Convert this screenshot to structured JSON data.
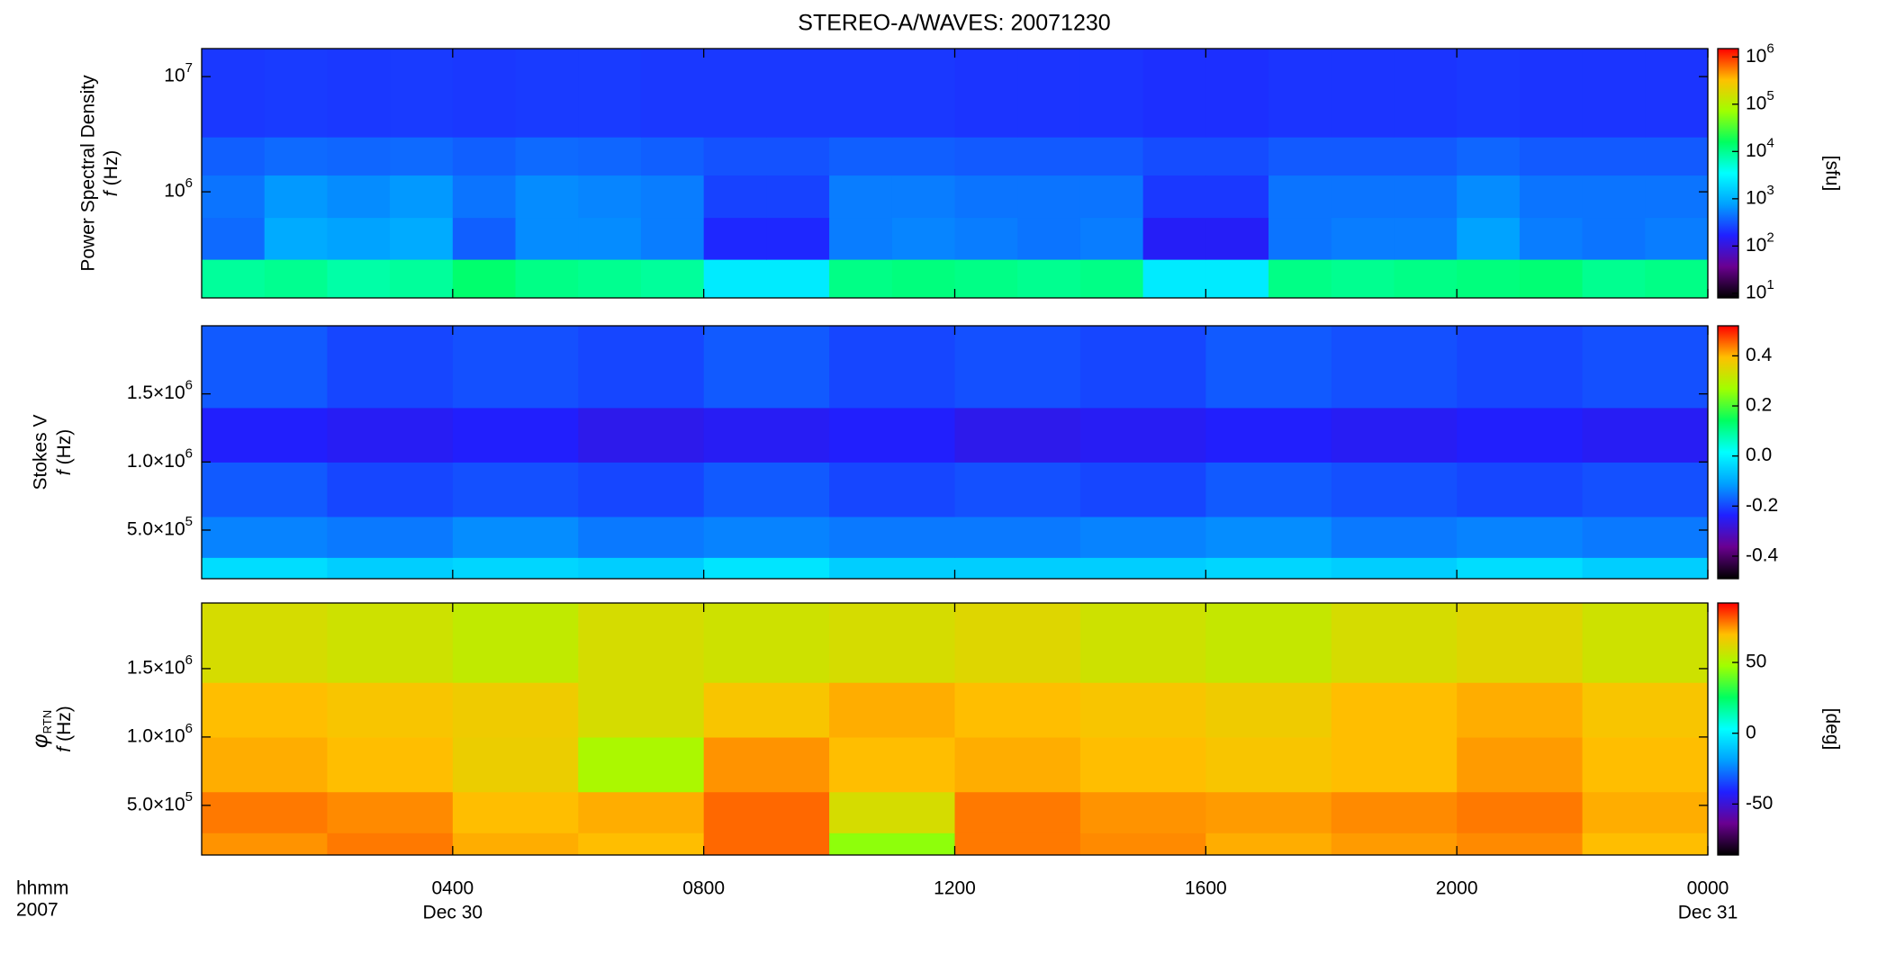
{
  "chart_data": [
    {
      "type": "heatmap",
      "title": "STEREO-A/WAVES: 20071230",
      "ylabel": "Power Spectral Density",
      "yvar": "f",
      "yunit": "(Hz)",
      "ylog": true,
      "ylim": [
        120000,
        17500000
      ],
      "yticks": [
        {
          "value": 1000000,
          "label": "10",
          "exponent": "6"
        },
        {
          "value": 10000000,
          "label": "10",
          "exponent": "7"
        }
      ],
      "zlog": true,
      "zlim": [
        8,
        1500000
      ],
      "zticks": [
        {
          "value": 10,
          "label": "10",
          "exponent": "1"
        },
        {
          "value": 100,
          "label": "10",
          "exponent": "2"
        },
        {
          "value": 1000,
          "label": "10",
          "exponent": "3"
        },
        {
          "value": 10000,
          "label": "10",
          "exponent": "4"
        },
        {
          "value": 100000,
          "label": "10",
          "exponent": "5"
        },
        {
          "value": 1000000,
          "label": "10",
          "exponent": "6"
        }
      ],
      "zlabel": "[sfu]",
      "colormap": [
        "#000000",
        "#6a0090",
        "#2020ff",
        "#00a0ff",
        "#00ffff",
        "#00ff60",
        "#a0ff00",
        "#ffc000",
        "#ff0000"
      ],
      "xlim": [
        0,
        24
      ],
      "xbins": [
        0,
        1,
        2,
        3,
        4,
        5,
        6,
        7,
        8,
        9,
        10,
        11,
        12,
        13,
        14,
        15,
        16,
        17,
        18,
        19,
        20,
        21,
        22,
        23,
        24
      ],
      "ybins": [
        120000,
        260000,
        600000,
        1400000,
        3000000,
        17500000
      ],
      "z": [
        [
          9000,
          10000,
          8000,
          9000,
          14000,
          11000,
          10000,
          9000,
          2500,
          2500,
          11000,
          12000,
          11000,
          10000,
          11000,
          2500,
          2500,
          11000,
          10000,
          11000,
          12000,
          13000,
          10000,
          11000
        ],
        [
          400,
          900,
          800,
          900,
          350,
          600,
          600,
          500,
          180,
          180,
          500,
          550,
          500,
          450,
          500,
          150,
          150,
          450,
          500,
          500,
          800,
          500,
          450,
          500
        ],
        [
          450,
          700,
          600,
          700,
          450,
          600,
          550,
          500,
          250,
          250,
          500,
          500,
          450,
          450,
          450,
          220,
          220,
          450,
          450,
          450,
          600,
          450,
          450,
          450
        ],
        [
          350,
          400,
          380,
          400,
          350,
          400,
          380,
          350,
          300,
          300,
          350,
          350,
          330,
          330,
          330,
          280,
          280,
          330,
          330,
          330,
          380,
          330,
          330,
          330
        ],
        [
          220,
          230,
          220,
          230,
          220,
          230,
          230,
          220,
          220,
          220,
          220,
          220,
          210,
          210,
          210,
          200,
          200,
          210,
          210,
          210,
          220,
          210,
          210,
          210
        ]
      ]
    },
    {
      "type": "heatmap",
      "ylabel": "Stokes V",
      "yvar": "f",
      "yunit": "(Hz)",
      "ylog": false,
      "ylim": [
        143000,
        2000000
      ],
      "yticks": [
        {
          "value": 500000,
          "label": "5.0×10",
          "exponent": "5"
        },
        {
          "value": 1000000,
          "label": "1.0×10",
          "exponent": "6"
        },
        {
          "value": 1500000,
          "label": "1.5×10",
          "exponent": "6"
        }
      ],
      "zlog": false,
      "zlim": [
        -0.49,
        0.52
      ],
      "zticks": [
        -0.4,
        -0.2,
        {
          "value": 0,
          "label": "0.0"
        },
        0.2,
        0.4
      ],
      "xlim": [
        0,
        24
      ],
      "xbins": [
        0,
        2,
        4,
        6,
        8,
        10,
        12,
        14,
        16,
        18,
        20,
        22,
        24
      ],
      "ybins": [
        143000,
        300000,
        600000,
        1000000,
        1400000,
        2000000
      ],
      "z": [
        [
          -0.03,
          -0.05,
          -0.04,
          -0.05,
          -0.02,
          -0.05,
          -0.05,
          -0.05,
          -0.04,
          -0.05,
          -0.03,
          -0.05
        ],
        [
          -0.14,
          -0.15,
          -0.13,
          -0.15,
          -0.14,
          -0.15,
          -0.15,
          -0.14,
          -0.13,
          -0.15,
          -0.14,
          -0.15
        ],
        [
          -0.18,
          -0.2,
          -0.19,
          -0.2,
          -0.18,
          -0.2,
          -0.19,
          -0.2,
          -0.18,
          -0.19,
          -0.2,
          -0.19
        ],
        [
          -0.24,
          -0.25,
          -0.24,
          -0.26,
          -0.25,
          -0.24,
          -0.26,
          -0.25,
          -0.24,
          -0.25,
          -0.24,
          -0.25
        ],
        [
          -0.18,
          -0.2,
          -0.19,
          -0.2,
          -0.18,
          -0.2,
          -0.19,
          -0.2,
          -0.18,
          -0.19,
          -0.2,
          -0.19
        ]
      ]
    },
    {
      "type": "heatmap",
      "ylabel": "φ",
      "ylabel_sub": "RTN",
      "yvar": "f",
      "yunit": "(Hz)",
      "ylog": false,
      "ylim": [
        137000,
        1980000
      ],
      "yticks": [
        {
          "value": 500000,
          "label": "5.0×10",
          "exponent": "5"
        },
        {
          "value": 1000000,
          "label": "1.0×10",
          "exponent": "6"
        },
        {
          "value": 1500000,
          "label": "1.5×10",
          "exponent": "6"
        }
      ],
      "zlog": false,
      "zlim": [
        -86,
        92
      ],
      "zticks": [
        -50,
        0,
        50
      ],
      "zlabel": "[deg]",
      "xlim": [
        0,
        24
      ],
      "xticks": [
        {
          "value": 4,
          "label": "0400"
        },
        {
          "value": 8,
          "label": "0800"
        },
        {
          "value": 12,
          "label": "1200"
        },
        {
          "value": 16,
          "label": "1600"
        },
        {
          "value": 20,
          "label": "2000"
        },
        {
          "value": 24,
          "label": "0000"
        }
      ],
      "xlabel": "hhmm",
      "year_label": "2007",
      "xtick_dates": [
        {
          "value": 4,
          "label": "Dec 30"
        },
        {
          "value": 24,
          "label": "Dec 31"
        }
      ],
      "xbins": [
        0,
        2,
        4,
        6,
        8,
        10,
        12,
        14,
        16,
        18,
        20,
        22,
        24
      ],
      "ybins": [
        137000,
        300000,
        600000,
        1000000,
        1400000,
        1980000
      ],
      "z": [
        [
          75,
          78,
          72,
          70,
          80,
          45,
          78,
          76,
          72,
          74,
          76,
          70
        ],
        [
          78,
          76,
          70,
          72,
          80,
          60,
          78,
          75,
          74,
          76,
          78,
          72
        ],
        [
          72,
          70,
          65,
          50,
          75,
          70,
          72,
          70,
          68,
          70,
          74,
          70
        ],
        [
          70,
          68,
          66,
          60,
          68,
          72,
          70,
          68,
          66,
          70,
          72,
          68
        ],
        [
          60,
          58,
          55,
          60,
          58,
          60,
          62,
          58,
          56,
          60,
          62,
          58
        ]
      ]
    }
  ]
}
